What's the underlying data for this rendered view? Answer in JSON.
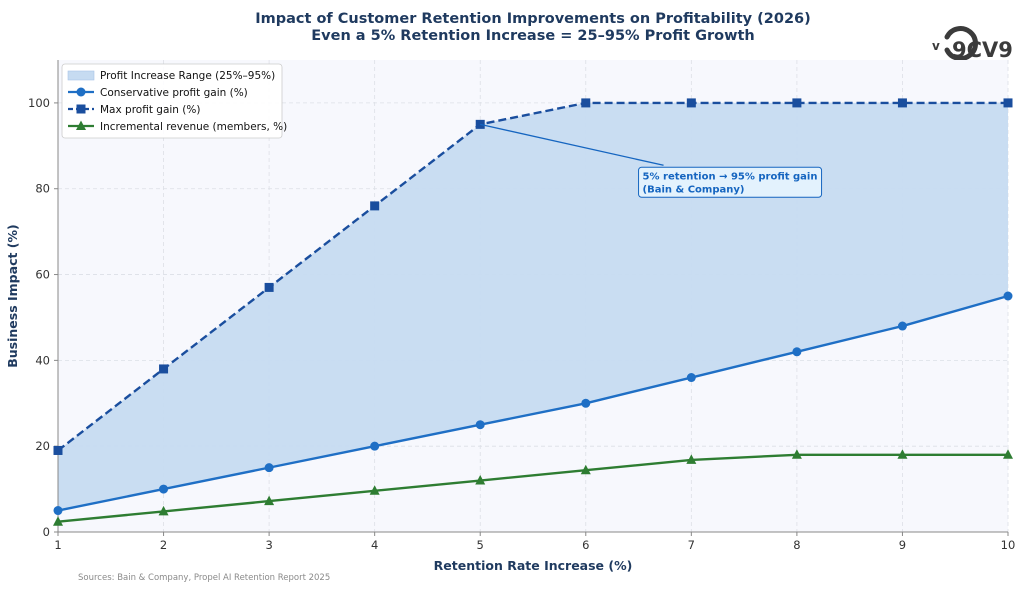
{
  "chart_data": {
    "type": "line",
    "title": "Impact of Customer Retention Improvements on Profitability (2026)",
    "subtitle": "Even a 5% Retention Increase = 25–95% Profit Growth",
    "xlabel": "Retention Rate Increase (%)",
    "ylabel": "Business Impact (%)",
    "xlim": [
      1,
      10
    ],
    "ylim": [
      0,
      110
    ],
    "x": [
      1,
      2,
      3,
      4,
      5,
      6,
      7,
      8,
      9,
      10
    ],
    "x_ticks": [
      1,
      2,
      3,
      4,
      5,
      6,
      7,
      8,
      9,
      10
    ],
    "y_ticks": [
      0,
      20,
      40,
      60,
      80,
      100
    ],
    "grid": true,
    "legend_position": "top-left",
    "band": {
      "name": "Profit Increase Range (25%–95%)",
      "lower_series": "Conservative profit gain (%)",
      "upper_series": "Max profit gain (%)",
      "color": "#c6dbf1"
    },
    "series": [
      {
        "name": "Conservative profit gain (%)",
        "values": [
          5,
          10,
          15,
          20,
          25,
          30,
          36,
          42,
          48,
          55
        ],
        "color": "#1f6fc5",
        "marker": "circle",
        "dash": false
      },
      {
        "name": "Max profit gain (%)",
        "values": [
          19,
          38,
          57,
          76,
          95,
          100,
          100,
          100,
          100,
          100
        ],
        "color": "#1a4e9e",
        "marker": "square",
        "dash": true
      },
      {
        "name": "Incremental revenue (members, %)",
        "values": [
          2.4,
          4.8,
          7.2,
          9.6,
          12,
          14.4,
          16.8,
          18,
          18,
          18
        ],
        "color": "#2e7d32",
        "marker": "triangle",
        "dash": false
      }
    ],
    "annotation": {
      "line1": "5% retention → 95% profit gain",
      "line2": "(Bain & Company)",
      "point_x": 5,
      "point_y": 95,
      "text_x": 6.5,
      "text_y": 85
    }
  },
  "source": "Sources: Bain & Company, Propel AI Retention Report 2025",
  "logo": {
    "text": "9CV9",
    "mark": "v"
  },
  "colors": {
    "plot_background": "#f7f8fd",
    "grid": "#dcdfe6",
    "axis": "#888888"
  }
}
